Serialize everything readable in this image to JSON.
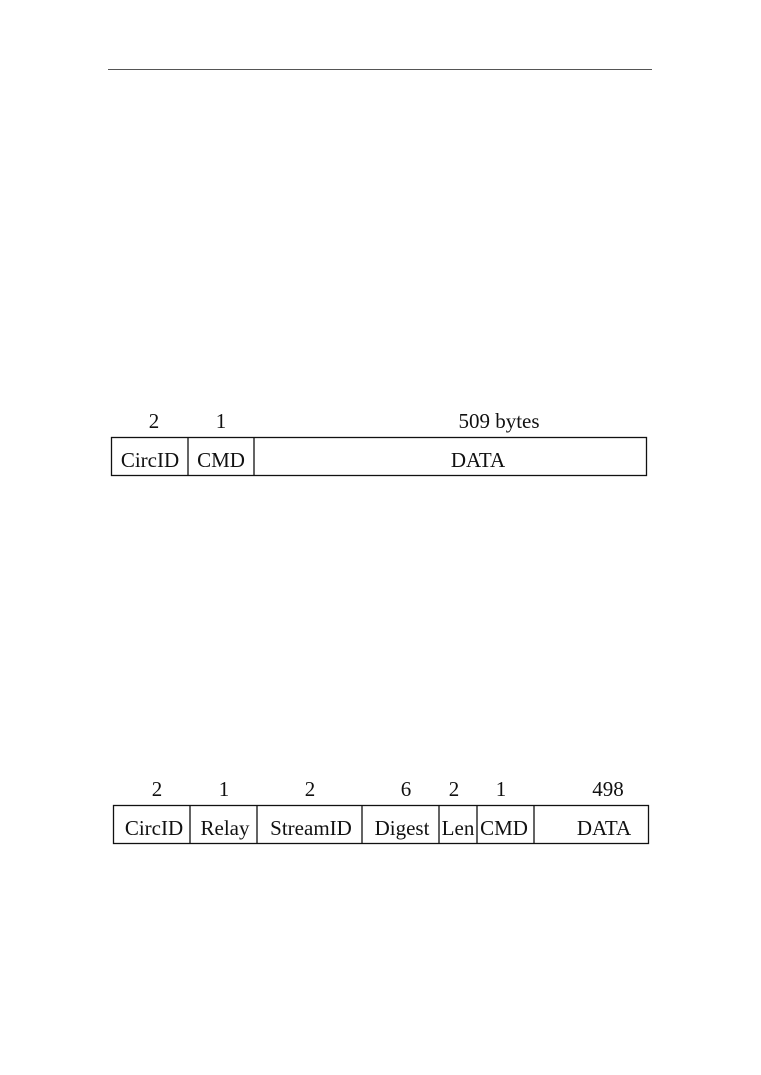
{
  "cell": {
    "sizes": [
      "2",
      "1",
      "509 bytes"
    ],
    "fields": [
      "CircID",
      "CMD",
      "DATA"
    ]
  },
  "relay_cell": {
    "sizes": [
      "2",
      "1",
      "2",
      "6",
      "2",
      "1",
      "498"
    ],
    "fields": [
      "CircID",
      "Relay",
      "StreamID",
      "Digest",
      "Len",
      "CMD",
      "DATA"
    ]
  }
}
